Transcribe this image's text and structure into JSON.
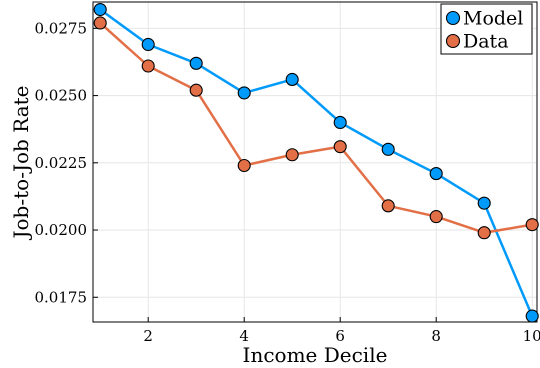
{
  "chart_data": {
    "type": "line",
    "title": "",
    "xlabel": "Income Decile",
    "ylabel": "Job-to-Job Rate",
    "xlim": [
      0.85,
      10.1
    ],
    "ylim": [
      0.01658,
      0.02848
    ],
    "xticks": [
      2,
      4,
      6,
      8,
      10
    ],
    "yticks": [
      0.0175,
      0.02,
      0.0225,
      0.025,
      0.0275
    ],
    "ytick_labels": [
      "0.0175",
      "0.0200",
      "0.0225",
      "0.0250",
      "0.0275"
    ],
    "grid": true,
    "legend": "top-right",
    "x": [
      1,
      2,
      3,
      4,
      5,
      6,
      7,
      8,
      9,
      10
    ],
    "series": [
      {
        "name": "Model",
        "color": "#009AFA",
        "marker": "circle",
        "values": [
          0.0282,
          0.0269,
          0.0262,
          0.0251,
          0.0256,
          0.024,
          0.023,
          0.0221,
          0.021,
          0.0168
        ]
      },
      {
        "name": "Data",
        "color": "#E26F46",
        "marker": "circle",
        "values": [
          0.0277,
          0.0261,
          0.0252,
          0.0224,
          0.0228,
          0.0231,
          0.0209,
          0.0205,
          0.0199,
          0.0202
        ]
      }
    ]
  }
}
